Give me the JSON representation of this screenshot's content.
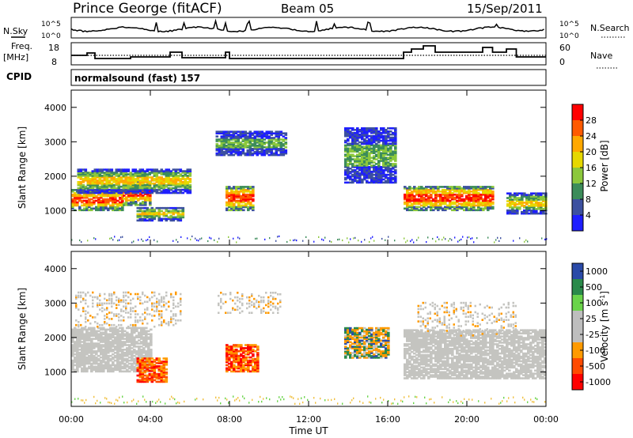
{
  "header": {
    "station": "Prince George (fitACF)",
    "beam": "Beam 05",
    "date": "15/Sep/2011"
  },
  "top_panels": {
    "nsky_label": "N.Sky",
    "nsky_ticks": [
      "10^5",
      "10^0"
    ],
    "nsearch_label": "N.Search",
    "nsearch_ticks": [
      "10^5",
      "10^0"
    ],
    "freq_label": "Freq.",
    "freq_unit": "[MHz]",
    "freq_ticks": [
      "18",
      "8"
    ],
    "nave_label": "Nave",
    "nave_ticks": [
      "60",
      "0"
    ],
    "cpid_label": "CPID",
    "cpid_text": "normalsound (fast) 157"
  },
  "colors": {
    "power_scale": [
      "#ff0000",
      "#ff5a00",
      "#ffa800",
      "#e6d800",
      "#8cc83c",
      "#3c8c5a",
      "#3c50a0",
      "#1e1eff"
    ],
    "velocity_scale": [
      "#ff0000",
      "#ff4a00",
      "#ff9a00",
      "#bebebe",
      "#bebebe",
      "#6ad44a",
      "#2a8a4a",
      "#2a4aa8"
    ],
    "ground_scatter": "#c4c4c0"
  },
  "chart_data": {
    "type": "heatmap",
    "x_axis": {
      "label": "Time UT",
      "range_hours": [
        0,
        24
      ],
      "tick_labels": [
        "00:00",
        "04:00",
        "08:00",
        "12:00",
        "16:00",
        "20:00",
        "00:00"
      ]
    },
    "y_axis": {
      "label": "Slant Range [km]",
      "range_km": [
        0,
        4500
      ],
      "tick_labels": [
        "1000",
        "2000",
        "3000",
        "4000"
      ]
    },
    "power_colorbar": {
      "label": "Power [dB]",
      "tick_labels": [
        "28",
        "24",
        "20",
        "16",
        "12",
        "8",
        "4"
      ]
    },
    "velocity_colorbar": {
      "label": "Velocity [m s",
      "label_superscript": "-1",
      "label_end": "]",
      "tick_labels": [
        "1000",
        "500",
        "100",
        "25",
        "-25",
        "-100",
        "-500",
        "-1000"
      ]
    },
    "power_regions": [
      {
        "t": [
          0.0,
          2.6
        ],
        "r": [
          1000,
          1600
        ],
        "level": "high"
      },
      {
        "t": [
          2.6,
          4.0
        ],
        "r": [
          1150,
          1850
        ],
        "level": "high"
      },
      {
        "t": [
          0.3,
          6.0
        ],
        "r": [
          1500,
          2200
        ],
        "level": "mid"
      },
      {
        "t": [
          3.3,
          5.6
        ],
        "r": [
          700,
          1100
        ],
        "level": "mid"
      },
      {
        "t": [
          7.8,
          9.2
        ],
        "r": [
          1000,
          1700
        ],
        "level": "high"
      },
      {
        "t": [
          7.3,
          10.8
        ],
        "r": [
          2600,
          3300
        ],
        "level": "low"
      },
      {
        "t": [
          13.8,
          16.4
        ],
        "r": [
          1800,
          3400
        ],
        "level": "low"
      },
      {
        "t": [
          16.8,
          21.3
        ],
        "r": [
          1000,
          1700
        ],
        "level": "high"
      },
      {
        "t": [
          22.0,
          24.0
        ],
        "r": [
          900,
          1500
        ],
        "level": "mid"
      }
    ],
    "velocity_regions": [
      {
        "t": [
          0.0,
          4.0
        ],
        "r": [
          1000,
          2300
        ],
        "class": "ground_scatter"
      },
      {
        "t": [
          3.3,
          4.8
        ],
        "r": [
          700,
          1400
        ],
        "class": "negative"
      },
      {
        "t": [
          7.8,
          9.4
        ],
        "r": [
          1000,
          1800
        ],
        "class": "negative"
      },
      {
        "t": [
          13.8,
          16.0
        ],
        "r": [
          1400,
          2300
        ],
        "class": "mixed"
      },
      {
        "t": [
          16.8,
          24.0
        ],
        "r": [
          800,
          2200
        ],
        "class": "ground_scatter"
      }
    ]
  }
}
